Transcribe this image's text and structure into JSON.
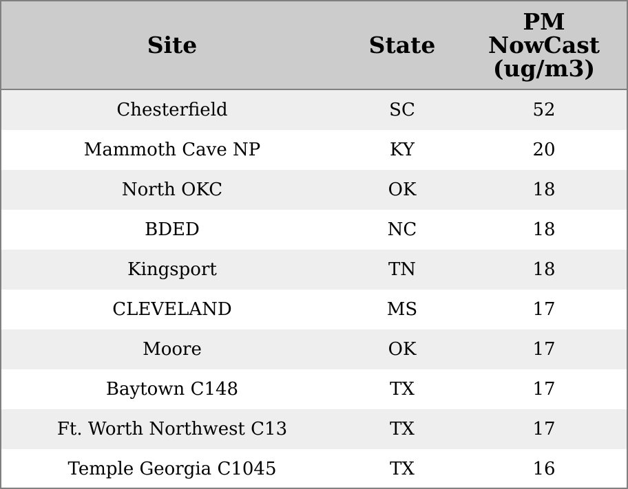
{
  "chart_data": {
    "type": "table",
    "columns": [
      "Site",
      "State",
      [
        "PM",
        "NowCast",
        "(ug/m3)"
      ]
    ],
    "rows": [
      {
        "site": "Chesterfield",
        "state": "SC",
        "pm": "52"
      },
      {
        "site": "Mammoth Cave NP",
        "state": "KY",
        "pm": "20"
      },
      {
        "site": "North OKC",
        "state": "OK",
        "pm": "18"
      },
      {
        "site": "BDED",
        "state": "NC",
        "pm": "18"
      },
      {
        "site": "Kingsport",
        "state": "TN",
        "pm": "18"
      },
      {
        "site": "CLEVELAND",
        "state": "MS",
        "pm": "17"
      },
      {
        "site": "Moore",
        "state": "OK",
        "pm": "17"
      },
      {
        "site": "Baytown C148",
        "state": "TX",
        "pm": "17"
      },
      {
        "site": "Ft. Worth Northwest C13",
        "state": "TX",
        "pm": "17"
      },
      {
        "site": "Temple Georgia C1045",
        "state": "TX",
        "pm": "16"
      }
    ],
    "colors": {
      "header_background": "#cccccc",
      "row_stripe": "#eeeeee",
      "border": "#808080"
    }
  }
}
